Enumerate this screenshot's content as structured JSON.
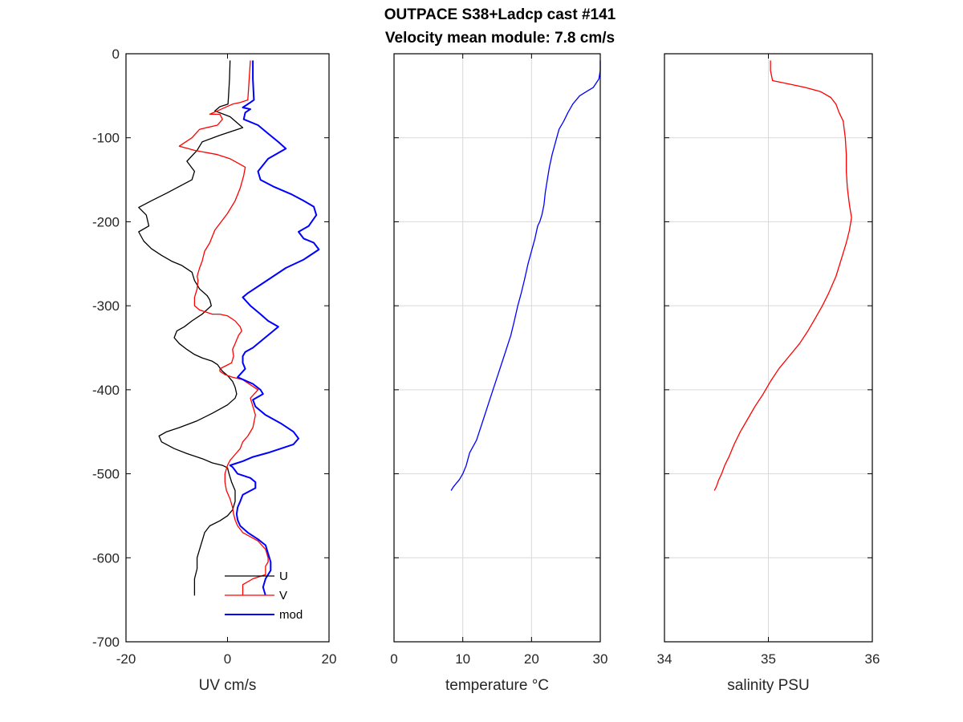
{
  "figure": {
    "title_line1": "OUTPACE S38+Ladcp cast #141",
    "title_line2": "Velocity mean module:  7.8 cm/s"
  },
  "chart_data": [
    {
      "type": "line",
      "xlabel": "UV cm/s",
      "ylabel": "",
      "xlim": [
        -20,
        20
      ],
      "ylim": [
        -700,
        0
      ],
      "xticks": [
        -20,
        0,
        20
      ],
      "yticks": [
        0,
        -100,
        -200,
        -300,
        -400,
        -500,
        -600,
        -700
      ],
      "xtick_labels": [
        "-20",
        "0",
        "20"
      ],
      "ytick_labels": [
        "0",
        "-100",
        "-200",
        "-300",
        "-400",
        "-500",
        "-600",
        "-700"
      ],
      "grid": false,
      "legend": "bottom-right",
      "series": [
        {
          "name": "U",
          "color": "#000000",
          "x": [
            0.5,
            0.4,
            0.2,
            0.1,
            -1.5,
            -2.5,
            0.5,
            3.0,
            -1.5,
            -5.0,
            -6.0,
            -8.0,
            -6.5,
            -7.0,
            -9.5,
            -12.0,
            -15.0,
            -17.5,
            -16.0,
            -15.5,
            -17.5,
            -16.5,
            -15.0,
            -13.0,
            -11.0,
            -9.0,
            -7.0,
            -6.5,
            -5.5,
            -4.0,
            -3.5,
            -3.2,
            -5.0,
            -7.0,
            -8.5,
            -10.0,
            -10.5,
            -9.5,
            -8.0,
            -6.5,
            -5.0,
            -3.0,
            -2.0,
            -1.5,
            -1.0,
            0.0,
            1.0,
            1.5,
            1.8,
            1.5,
            0.0,
            -3.0,
            -6.0,
            -9.5,
            -12.0,
            -13.5,
            -13.0,
            -10.5,
            -8.0,
            -5.0,
            -3.0,
            -1.0,
            0.0,
            0.3,
            0.8,
            1.5,
            1.5,
            1.0,
            0.0,
            -1.5,
            -3.5,
            -4.5,
            -5.0,
            -5.5,
            -6.0,
            -6.0,
            -6.5,
            -6.5
          ],
          "y": [
            -8,
            -30,
            -50,
            -60,
            -63,
            -68,
            -75,
            -88,
            -97,
            -105,
            -115,
            -128,
            -140,
            -150,
            -158,
            -166,
            -175,
            -183,
            -192,
            -205,
            -212,
            -223,
            -232,
            -240,
            -247,
            -252,
            -260,
            -270,
            -280,
            -288,
            -293,
            -300,
            -310,
            -318,
            -325,
            -330,
            -338,
            -345,
            -352,
            -358,
            -362,
            -366,
            -370,
            -374,
            -378,
            -383,
            -390,
            -397,
            -405,
            -410,
            -418,
            -428,
            -437,
            -445,
            -450,
            -455,
            -462,
            -470,
            -476,
            -482,
            -487,
            -490,
            -493,
            -500,
            -510,
            -520,
            -533,
            -543,
            -550,
            -556,
            -562,
            -570,
            -580,
            -590,
            -600,
            -613,
            -625,
            -645
          ]
        },
        {
          "name": "V",
          "color": "#ff0000",
          "x": [
            4.5,
            4.0,
            2.5,
            1.0,
            -2.0,
            -3.5,
            -1.5,
            -1.0,
            -2.0,
            -5.5,
            -7.0,
            -9.5,
            -6.5,
            -2.0,
            0.5,
            2.0,
            3.5,
            3.2,
            2.5,
            1.5,
            0.0,
            -2.5,
            -3.5,
            -4.5,
            -5.0,
            -5.5,
            -6.0,
            -5.8,
            -6.0,
            -6.5,
            -6.5,
            -5.5,
            -4.0,
            -3.0,
            -1.5,
            0.0,
            1.5,
            2.5,
            2.8,
            2.2,
            1.5,
            1.0,
            1.2,
            0.8,
            -0.5,
            -1.5,
            -1.5,
            -0.5,
            1.0,
            3.0,
            6.0,
            4.5,
            5.5,
            5.0,
            4.0,
            3.0,
            2.5,
            1.5,
            0.5,
            0.0,
            -0.5,
            -0.5,
            -0.2,
            0.5,
            1.0,
            1.2,
            1.5,
            2.0,
            3.0,
            4.5,
            6.0,
            7.5,
            8.0,
            8.0,
            7.5,
            7.5,
            5.0,
            3.0,
            3.0
          ],
          "y": [
            -8,
            -55,
            -58,
            -60,
            -68,
            -72,
            -72,
            -78,
            -85,
            -90,
            -100,
            -110,
            -115,
            -120,
            -125,
            -130,
            -135,
            -145,
            -160,
            -175,
            -190,
            -210,
            -225,
            -235,
            -247,
            -255,
            -265,
            -270,
            -280,
            -290,
            -300,
            -305,
            -308,
            -310,
            -310,
            -312,
            -318,
            -325,
            -330,
            -335,
            -345,
            -352,
            -360,
            -368,
            -372,
            -375,
            -378,
            -382,
            -385,
            -388,
            -400,
            -410,
            -430,
            -445,
            -455,
            -462,
            -470,
            -477,
            -484,
            -490,
            -500,
            -510,
            -520,
            -530,
            -540,
            -548,
            -555,
            -562,
            -570,
            -575,
            -580,
            -590,
            -600,
            -605,
            -610,
            -620,
            -625,
            -632,
            -645
          ]
        },
        {
          "name": "mod",
          "color": "#0000ff",
          "x": [
            5.0,
            5.0,
            5.2,
            4.5,
            3.0,
            4.5,
            3.5,
            3.2,
            6.0,
            8.0,
            10.0,
            11.5,
            8.0,
            6.0,
            6.5,
            9.0,
            12.5,
            15.0,
            17.0,
            17.5,
            16.0,
            14.0,
            15.0,
            17.0,
            18.0,
            15.0,
            11.5,
            9.0,
            6.5,
            4.0,
            3.0,
            4.5,
            6.5,
            8.0,
            10.0,
            9.0,
            7.0,
            5.0,
            3.5,
            3.0,
            3.0,
            3.5,
            2.0,
            5.0,
            6.5,
            7.0,
            5.0,
            5.5,
            7.5,
            10.5,
            13.0,
            14.0,
            13.0,
            8.0,
            5.0,
            3.0,
            1.5,
            0.5,
            1.0,
            2.0,
            4.5,
            5.5,
            5.5,
            3.0,
            2.5,
            2.0,
            1.8,
            2.0,
            2.5,
            4.0,
            6.0,
            7.5,
            8.0,
            8.5,
            8.5,
            7.5,
            7.0,
            7.5
          ],
          "y": [
            -8,
            -30,
            -55,
            -58,
            -64,
            -66,
            -70,
            -78,
            -85,
            -95,
            -105,
            -113,
            -125,
            -140,
            -150,
            -158,
            -167,
            -175,
            -182,
            -192,
            -205,
            -212,
            -220,
            -225,
            -233,
            -245,
            -255,
            -265,
            -275,
            -285,
            -290,
            -300,
            -310,
            -318,
            -325,
            -330,
            -340,
            -350,
            -355,
            -360,
            -368,
            -375,
            -385,
            -393,
            -400,
            -405,
            -412,
            -420,
            -430,
            -440,
            -450,
            -458,
            -465,
            -475,
            -480,
            -485,
            -488,
            -490,
            -492,
            -500,
            -505,
            -510,
            -517,
            -525,
            -533,
            -540,
            -548,
            -555,
            -562,
            -570,
            -578,
            -585,
            -595,
            -605,
            -615,
            -625,
            -635,
            -645
          ]
        }
      ]
    },
    {
      "type": "line",
      "xlabel": "temperature °C",
      "ylabel": "",
      "xlim": [
        0,
        30
      ],
      "ylim": [
        -700,
        0
      ],
      "xticks": [
        0,
        10,
        20,
        30
      ],
      "xtick_labels": [
        "0",
        "10",
        "20",
        "30"
      ],
      "grid": true,
      "series": [
        {
          "color": "#0000ff",
          "x": [
            30.0,
            30.0,
            29.8,
            29.0,
            28.0,
            27.0,
            26.0,
            25.3,
            24.7,
            24.0,
            23.5,
            23.0,
            22.6,
            22.3,
            22.0,
            21.8,
            21.5,
            21.2,
            20.9,
            20.5,
            20.0,
            19.5,
            19.0,
            18.5,
            18.0,
            17.5,
            17.0,
            16.0,
            15.0,
            14.0,
            13.0,
            12.0,
            11.0,
            10.5,
            10.0,
            9.5,
            9.0,
            8.6,
            8.3
          ],
          "y": [
            -8,
            -20,
            -30,
            -40,
            -45,
            -50,
            -60,
            -70,
            -80,
            -90,
            -105,
            -120,
            -135,
            -150,
            -165,
            -180,
            -192,
            -200,
            -205,
            -220,
            -235,
            -250,
            -268,
            -285,
            -300,
            -318,
            -335,
            -360,
            -385,
            -410,
            -435,
            -460,
            -475,
            -490,
            -500,
            -507,
            -512,
            -516,
            -520
          ]
        }
      ]
    },
    {
      "type": "line",
      "xlabel": "salinity PSU",
      "ylabel": "",
      "xlim": [
        34,
        36
      ],
      "ylim": [
        -700,
        0
      ],
      "xticks": [
        34,
        35,
        36
      ],
      "xtick_labels": [
        "34",
        "35",
        "36"
      ],
      "grid": true,
      "series": [
        {
          "color": "#ff0000",
          "x": [
            35.02,
            35.02,
            35.04,
            35.2,
            35.35,
            35.5,
            35.6,
            35.65,
            35.68,
            35.72,
            35.74,
            35.75,
            35.75,
            35.76,
            35.78,
            35.8,
            35.78,
            35.75,
            35.7,
            35.65,
            35.58,
            35.52,
            35.45,
            35.38,
            35.3,
            35.2,
            35.1,
            35.02,
            34.95,
            34.87,
            34.8,
            34.73,
            34.67,
            34.62,
            34.58,
            34.55,
            34.52,
            34.5,
            34.48
          ],
          "y": [
            -8,
            -20,
            -32,
            -36,
            -40,
            -45,
            -52,
            -60,
            -70,
            -80,
            -100,
            -120,
            -140,
            -160,
            -180,
            -195,
            -210,
            -225,
            -245,
            -265,
            -285,
            -300,
            -315,
            -330,
            -345,
            -360,
            -375,
            -390,
            -405,
            -420,
            -435,
            -450,
            -465,
            -480,
            -490,
            -500,
            -508,
            -515,
            -520
          ]
        }
      ]
    }
  ]
}
